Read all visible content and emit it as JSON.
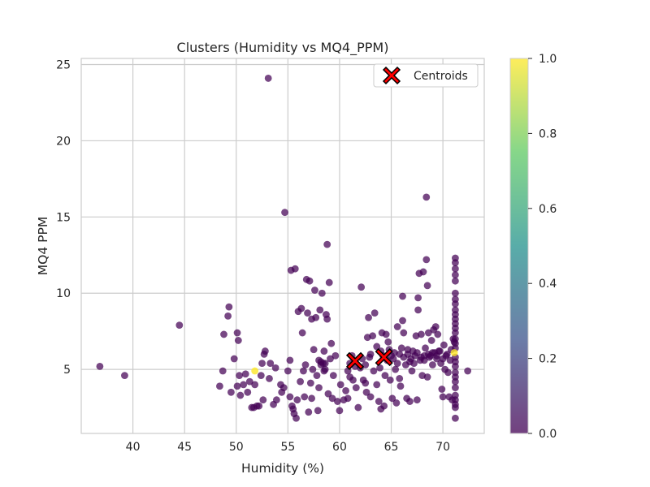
{
  "chart_data": {
    "type": "scatter",
    "title": "Clusters (Humidity vs MQ4_PPM)",
    "xlabel": "Humidity (%)",
    "ylabel": "MQ4 PPM",
    "xlim": [
      35,
      74
    ],
    "ylim": [
      0.8,
      25.4
    ],
    "xticks": [
      40,
      45,
      50,
      55,
      60,
      65,
      70
    ],
    "yticks": [
      5,
      10,
      15,
      20,
      25
    ],
    "grid": true,
    "legend": {
      "placement": "top-right",
      "entries": [
        "Centroids"
      ]
    },
    "colorbar": {
      "min": 0.0,
      "max": 1.0,
      "ticks": [
        "0.0",
        "0.2",
        "0.4",
        "0.6",
        "0.8",
        "1.0"
      ],
      "colormap": [
        "#440154",
        "#3b528b",
        "#21918c",
        "#5ec962",
        "#fde725"
      ]
    },
    "colors": {
      "cluster_0": "#440154",
      "cluster_1": "#fde725",
      "centroid": "#ff0000"
    },
    "series": [
      {
        "cluster": 0,
        "points": [
          [
            36.8,
            5.2
          ],
          [
            39.2,
            4.6
          ],
          [
            44.5,
            7.9
          ],
          [
            48.4,
            3.9
          ],
          [
            48.7,
            4.9
          ],
          [
            48.8,
            7.3
          ],
          [
            49.2,
            8.5
          ],
          [
            49.3,
            9.1
          ],
          [
            49.5,
            3.5
          ],
          [
            49.8,
            5.7
          ],
          [
            50.1,
            3.9
          ],
          [
            50.1,
            7.4
          ],
          [
            50.2,
            6.9
          ],
          [
            50.3,
            4.6
          ],
          [
            50.4,
            3.3
          ],
          [
            50.7,
            4.0
          ],
          [
            50.9,
            4.7
          ],
          [
            51.1,
            3.5
          ],
          [
            51.3,
            4.2
          ],
          [
            51.5,
            2.5
          ],
          [
            51.7,
            2.5
          ],
          [
            51.8,
            4.0
          ],
          [
            52.0,
            2.6
          ],
          [
            52.2,
            2.6
          ],
          [
            52.4,
            4.6
          ],
          [
            52.5,
            5.4
          ],
          [
            52.6,
            3.0
          ],
          [
            52.7,
            6.0
          ],
          [
            52.8,
            6.2
          ],
          [
            53.1,
            24.1
          ],
          [
            53.2,
            4.4
          ],
          [
            53.3,
            5.4
          ],
          [
            53.6,
            2.7
          ],
          [
            53.8,
            5.1
          ],
          [
            53.9,
            3.0
          ],
          [
            54.3,
            4.0
          ],
          [
            54.4,
            3.5
          ],
          [
            54.6,
            3.8
          ],
          [
            54.7,
            15.3
          ],
          [
            55.0,
            4.9
          ],
          [
            55.2,
            3.2
          ],
          [
            55.2,
            5.6
          ],
          [
            55.3,
            11.5
          ],
          [
            55.4,
            2.6
          ],
          [
            55.5,
            2.4
          ],
          [
            55.6,
            2.1
          ],
          [
            55.7,
            11.6
          ],
          [
            55.8,
            1.8
          ],
          [
            55.9,
            3.0
          ],
          [
            56.0,
            8.8
          ],
          [
            56.2,
            4.2
          ],
          [
            56.3,
            9.0
          ],
          [
            56.4,
            7.4
          ],
          [
            56.5,
            4.9
          ],
          [
            56.6,
            3.2
          ],
          [
            56.7,
            5.3
          ],
          [
            56.8,
            10.9
          ],
          [
            56.9,
            8.7
          ],
          [
            57.0,
            2.2
          ],
          [
            57.1,
            10.8
          ],
          [
            57.2,
            4.1
          ],
          [
            57.3,
            3.1
          ],
          [
            57.3,
            8.3
          ],
          [
            57.4,
            5.0
          ],
          [
            57.5,
            6.3
          ],
          [
            57.6,
            10.2
          ],
          [
            57.7,
            8.4
          ],
          [
            57.8,
            4.6
          ],
          [
            57.9,
            2.3
          ],
          [
            58.0,
            5.6
          ],
          [
            58.0,
            3.8
          ],
          [
            58.1,
            8.9
          ],
          [
            58.2,
            5.3
          ],
          [
            58.3,
            10.0
          ],
          [
            58.4,
            5.4
          ],
          [
            58.5,
            6.2
          ],
          [
            58.6,
            5.0
          ],
          [
            58.7,
            8.6
          ],
          [
            58.8,
            13.2
          ],
          [
            58.8,
            8.3
          ],
          [
            58.9,
            3.4
          ],
          [
            59.0,
            10.7
          ],
          [
            59.1,
            5.7
          ],
          [
            59.2,
            6.7
          ],
          [
            59.3,
            3.1
          ],
          [
            59.4,
            4.6
          ],
          [
            59.6,
            5.9
          ],
          [
            59.8,
            2.9
          ],
          [
            60.0,
            2.3
          ],
          [
            60.1,
            4.0
          ],
          [
            60.4,
            3.0
          ],
          [
            60.6,
            3.6
          ],
          [
            60.8,
            3.1
          ],
          [
            61.0,
            4.5
          ],
          [
            61.3,
            4.3
          ],
          [
            61.6,
            3.8
          ],
          [
            61.8,
            2.5
          ],
          [
            62.0,
            5.1
          ],
          [
            62.1,
            10.4
          ],
          [
            62.3,
            4.3
          ],
          [
            62.5,
            4.1
          ],
          [
            62.6,
            3.5
          ],
          [
            62.7,
            7.1
          ],
          [
            62.8,
            8.4
          ],
          [
            62.9,
            5.8
          ],
          [
            63.0,
            3.2
          ],
          [
            63.2,
            7.2
          ],
          [
            63.3,
            4.9
          ],
          [
            63.4,
            8.7
          ],
          [
            63.6,
            4.0
          ],
          [
            63.8,
            2.9
          ],
          [
            63.9,
            5.1
          ],
          [
            64.0,
            2.4
          ],
          [
            64.1,
            7.4
          ],
          [
            64.3,
            2.6
          ],
          [
            64.4,
            4.6
          ],
          [
            64.5,
            7.3
          ],
          [
            64.7,
            6.8
          ],
          [
            64.9,
            4.3
          ],
          [
            65.0,
            5.9
          ],
          [
            65.1,
            3.1
          ],
          [
            65.3,
            6.1
          ],
          [
            65.4,
            5.0
          ],
          [
            65.5,
            2.8
          ],
          [
            65.6,
            7.8
          ],
          [
            65.8,
            4.4
          ],
          [
            65.9,
            3.9
          ],
          [
            66.0,
            6.4
          ],
          [
            66.1,
            8.2
          ],
          [
            66.1,
            9.8
          ],
          [
            66.2,
            7.4
          ],
          [
            66.4,
            5.3
          ],
          [
            66.5,
            3.1
          ],
          [
            66.6,
            6.0
          ],
          [
            66.8,
            2.9
          ],
          [
            66.9,
            5.7
          ],
          [
            67.0,
            4.9
          ],
          [
            67.1,
            6.2
          ],
          [
            67.2,
            5.4
          ],
          [
            67.4,
            7.2
          ],
          [
            67.5,
            3.0
          ],
          [
            67.6,
            9.7
          ],
          [
            67.6,
            8.9
          ],
          [
            67.7,
            11.3
          ],
          [
            67.8,
            5.6
          ],
          [
            67.9,
            7.3
          ],
          [
            68.0,
            4.6
          ],
          [
            68.1,
            11.4
          ],
          [
            68.2,
            5.9
          ],
          [
            68.3,
            6.4
          ],
          [
            68.4,
            12.2
          ],
          [
            68.4,
            16.3
          ],
          [
            68.5,
            10.5
          ],
          [
            68.5,
            4.5
          ],
          [
            68.6,
            7.4
          ],
          [
            68.7,
            5.8
          ],
          [
            68.9,
            6.9
          ],
          [
            69.0,
            5.3
          ],
          [
            69.1,
            7.6
          ],
          [
            69.2,
            6.1
          ],
          [
            69.3,
            7.8
          ],
          [
            69.4,
            5.7
          ],
          [
            69.5,
            7.3
          ],
          [
            69.6,
            6.2
          ],
          [
            69.8,
            5.4
          ],
          [
            69.9,
            3.7
          ],
          [
            70.0,
            3.2
          ],
          [
            70.1,
            6.6
          ],
          [
            70.2,
            5.0
          ],
          [
            70.3,
            5.9
          ],
          [
            70.5,
            4.8
          ],
          [
            70.6,
            3.2
          ],
          [
            70.8,
            6.3
          ],
          [
            70.9,
            3.0
          ],
          [
            71.0,
            7.0
          ],
          [
            71.1,
            6.8
          ],
          [
            71.2,
            2.5
          ],
          [
            71.2,
            1.8
          ],
          [
            71.2,
            2.7
          ],
          [
            71.2,
            3.0
          ],
          [
            71.2,
            3.3
          ],
          [
            71.2,
            3.8
          ],
          [
            71.2,
            4.2
          ],
          [
            71.2,
            4.5
          ],
          [
            71.2,
            4.8
          ],
          [
            71.2,
            5.2
          ],
          [
            71.2,
            5.5
          ],
          [
            71.2,
            5.8
          ],
          [
            71.2,
            6.4
          ],
          [
            71.2,
            6.7
          ],
          [
            71.2,
            7.0
          ],
          [
            71.2,
            7.4
          ],
          [
            71.2,
            7.7
          ],
          [
            71.2,
            8.0
          ],
          [
            71.2,
            8.3
          ],
          [
            71.2,
            8.6
          ],
          [
            71.2,
            8.9
          ],
          [
            71.2,
            9.3
          ],
          [
            71.2,
            9.6
          ],
          [
            71.2,
            10.0
          ],
          [
            71.2,
            10.8
          ],
          [
            71.2,
            11.2
          ],
          [
            71.2,
            11.6
          ],
          [
            71.2,
            12.0
          ],
          [
            71.2,
            12.3
          ],
          [
            72.4,
            4.9
          ],
          [
            63.6,
            6.5
          ],
          [
            64.0,
            6.2
          ],
          [
            64.2,
            5.9
          ],
          [
            64.6,
            5.6
          ],
          [
            64.8,
            6.3
          ],
          [
            65.2,
            5.7
          ],
          [
            65.6,
            5.4
          ],
          [
            65.8,
            6.0
          ],
          [
            66.2,
            5.8
          ],
          [
            66.6,
            6.3
          ],
          [
            66.8,
            5.5
          ],
          [
            67.3,
            5.9
          ],
          [
            67.5,
            6.1
          ],
          [
            67.9,
            5.8
          ],
          [
            68.2,
            5.6
          ],
          [
            68.6,
            6.0
          ],
          [
            68.8,
            5.9
          ],
          [
            69.0,
            6.1
          ],
          [
            69.4,
            5.9
          ],
          [
            69.7,
            6.2
          ],
          [
            70.0,
            5.7
          ],
          [
            70.4,
            6.0
          ],
          [
            70.7,
            5.6
          ],
          [
            63.0,
            6.0
          ],
          [
            62.5,
            5.3
          ],
          [
            62.2,
            5.7
          ],
          [
            61.5,
            5.2
          ],
          [
            61.2,
            5.9
          ],
          [
            60.8,
            4.9
          ],
          [
            61.0,
            5.4
          ],
          [
            58.6,
            5.4
          ],
          [
            58.2,
            5.5
          ],
          [
            58.5,
            4.9
          ]
        ]
      },
      {
        "cluster": 1,
        "points": [
          [
            51.8,
            4.9
          ],
          [
            71.1,
            6.1
          ]
        ]
      }
    ],
    "centroids": [
      [
        61.5,
        5.55
      ],
      [
        64.3,
        5.8
      ]
    ]
  }
}
